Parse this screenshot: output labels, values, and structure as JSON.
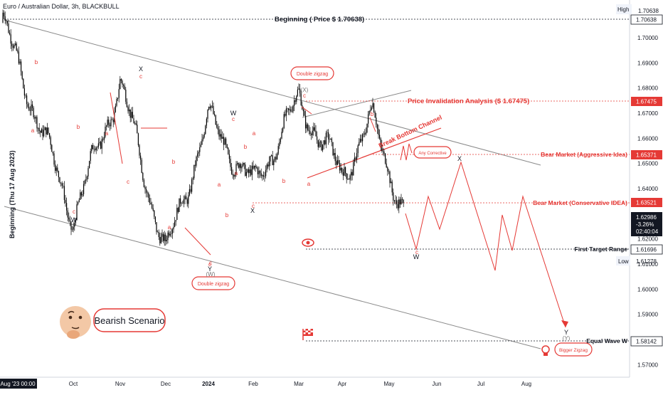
{
  "header": {
    "symbol_title": "Euro / Australian Dollar, 3h, BLACKBULL"
  },
  "chart_data": {
    "type": "line",
    "instrument": "EURAUD",
    "timeframe": "3h",
    "broker": "BLACKBULL",
    "y_axis": {
      "min": 1.565,
      "max": 1.715,
      "ticks": [
        "1.70000",
        "1.69000",
        "1.68000",
        "1.67000",
        "1.66000",
        "1.65000",
        "1.64000",
        "1.62000",
        "1.61000",
        "1.60000",
        "1.59000",
        "1.57000"
      ],
      "scale_note": "linear"
    },
    "x_axis": {
      "ticks": [
        "Aug '23  00:00",
        "Oct",
        "Nov",
        "Dec",
        "2024",
        "Feb",
        "Mar",
        "Apr",
        "May",
        "Jun",
        "Jul",
        "Aug"
      ],
      "bold_tick": "2024"
    },
    "price_badges": [
      {
        "label": "High",
        "value": "1.70638",
        "style": "plain"
      },
      {
        "value": "1.70638",
        "style": "boxed",
        "color": "#000000"
      },
      {
        "value": "1.67475",
        "style": "filled",
        "color": "#e53935"
      },
      {
        "value": "1.65371",
        "style": "filled",
        "color": "#e53935"
      },
      {
        "value": "1.63521",
        "style": "filled",
        "color": "#e53935"
      },
      {
        "value": "1.62986",
        "style": "filled",
        "color": "#131722"
      },
      {
        "value": "-3.26%",
        "style": "filled",
        "color": "#131722"
      },
      {
        "value": "02:40:04",
        "style": "filled",
        "color": "#131722"
      },
      {
        "value": "1.61696",
        "style": "boxed",
        "color": "#000000"
      },
      {
        "label": "Low",
        "value": "1.61278",
        "style": "plain"
      },
      {
        "value": "1.58142",
        "style": "boxed",
        "color": "#000000"
      }
    ],
    "levels": [
      {
        "name": "Beginning ( Price $ 1.70638)",
        "price": 1.70638,
        "color": "#131722"
      },
      {
        "name": "Price Invalidation Analysis ($ 1.67475)",
        "price": 1.67475,
        "color": "#e53935"
      },
      {
        "name": "Bear Market (Aggressive Idea)",
        "price": 1.65371,
        "color": "#e53935"
      },
      {
        "name": "Bear Market (Conservative IDEA)",
        "price": 1.63521,
        "color": "#e53935"
      },
      {
        "name": "First Target Range",
        "price": 1.61696,
        "color": "#131722"
      },
      {
        "name": "Equal Wave W",
        "price": 1.58142,
        "color": "#131722"
      }
    ],
    "vertical_label": "Beginning (Thu 17 Aug 2023)",
    "channel_label": "Break Bottom Channel",
    "bubbles": [
      "Double zigzag",
      "Double zigzag",
      "Any Corrective",
      "Bigger Zigzag"
    ],
    "scenario": "Bearish Scenario",
    "wave_labels_black": [
      "X",
      "W",
      "Y",
      "W",
      "(X)",
      "X",
      "X",
      "W",
      "(W)",
      "Y",
      "(Y)"
    ],
    "wave_labels_red": [
      "b",
      "a",
      "c",
      "b",
      "a",
      "c",
      "c",
      "a",
      "b",
      "c",
      "a",
      "b",
      "c",
      "b",
      "a",
      "c",
      "a",
      "b",
      "c",
      "c",
      "a",
      "b",
      "c"
    ],
    "projected_path": {
      "color": "#e53935",
      "points": [
        [
          "May",
          1.62
        ],
        [
          "late May",
          1.614
        ],
        [
          "early Jun",
          1.638
        ],
        [
          "mid Jun",
          1.623
        ],
        [
          "late Jun",
          1.65
        ],
        [
          "early Jul",
          1.61
        ],
        [
          "mid Jul",
          1.63
        ],
        [
          "Jul",
          1.614
        ],
        [
          "late Jul",
          1.637
        ],
        [
          "Aug",
          1.593
        ]
      ]
    },
    "price_series_trend": [
      [
        "Aug '23",
        1.706
      ],
      [
        "Oct",
        1.628
      ],
      [
        "Nov",
        1.682
      ],
      [
        "Dec",
        1.614
      ],
      [
        "2024",
        1.668
      ],
      [
        "Feb",
        1.641
      ],
      [
        "Mar",
        1.675
      ],
      [
        "Apr",
        1.645
      ],
      [
        "Apr late",
        1.668
      ],
      [
        "May",
        1.63
      ]
    ]
  }
}
